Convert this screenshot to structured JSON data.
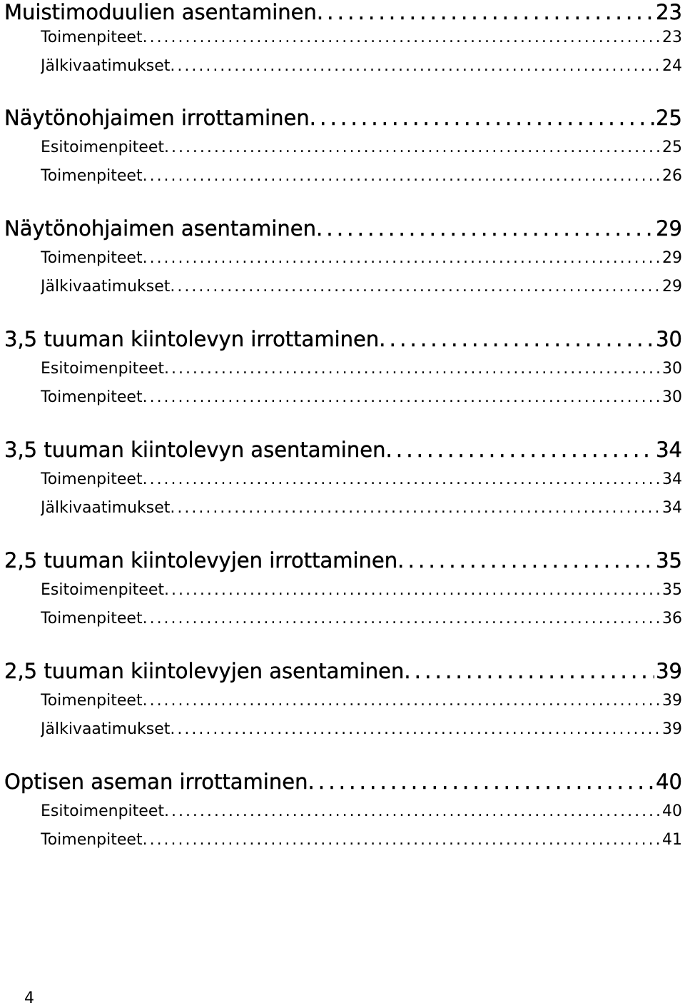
{
  "toc": {
    "entries": [
      {
        "title": "Muistimoduulien asentaminen",
        "page": "23"
      },
      {
        "title": "Toimenpiteet",
        "page": "23"
      },
      {
        "title": "Jälkivaatimukset",
        "page": "24"
      },
      {
        "title": "Näytönohjaimen irrottaminen",
        "page": "25"
      },
      {
        "title": "Esitoimenpiteet",
        "page": "25"
      },
      {
        "title": "Toimenpiteet",
        "page": "26"
      },
      {
        "title": "Näytönohjaimen asentaminen",
        "page": "29"
      },
      {
        "title": "Toimenpiteet",
        "page": "29"
      },
      {
        "title": "Jälkivaatimukset",
        "page": "29"
      },
      {
        "title": "3,5 tuuman kiintolevyn irrottaminen",
        "page": "30"
      },
      {
        "title": "Esitoimenpiteet",
        "page": "30"
      },
      {
        "title": "Toimenpiteet",
        "page": "30"
      },
      {
        "title": "3,5 tuuman kiintolevyn asentaminen",
        "page": "34"
      },
      {
        "title": "Toimenpiteet",
        "page": "34"
      },
      {
        "title": "Jälkivaatimukset",
        "page": "34"
      },
      {
        "title": "2,5 tuuman kiintolevyjen irrottaminen",
        "page": "35"
      },
      {
        "title": "Esitoimenpiteet",
        "page": "35"
      },
      {
        "title": "Toimenpiteet",
        "page": "36"
      },
      {
        "title": "2,5 tuuman kiintolevyjen asentaminen",
        "page": "39"
      },
      {
        "title": "Toimenpiteet",
        "page": "39"
      },
      {
        "title": "Jälkivaatimukset",
        "page": "39"
      },
      {
        "title": "Optisen aseman irrottaminen",
        "page": "40"
      },
      {
        "title": "Esitoimenpiteet",
        "page": "40"
      },
      {
        "title": "Toimenpiteet",
        "page": "41"
      }
    ]
  },
  "footer": {
    "page_number": "4"
  }
}
